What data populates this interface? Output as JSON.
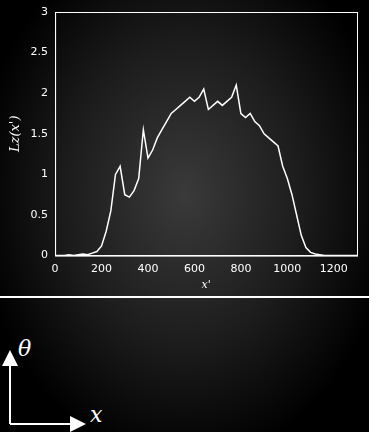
{
  "chart_data": {
    "type": "line",
    "x_label": "x'",
    "y_label": "Lz(x')",
    "x": [
      0,
      20,
      40,
      60,
      80,
      100,
      120,
      140,
      160,
      180,
      200,
      220,
      240,
      260,
      280,
      300,
      320,
      340,
      360,
      380,
      400,
      420,
      440,
      460,
      480,
      500,
      520,
      540,
      560,
      580,
      600,
      620,
      640,
      660,
      680,
      700,
      720,
      740,
      760,
      780,
      800,
      820,
      840,
      860,
      880,
      900,
      920,
      940,
      960,
      980,
      1000,
      1020,
      1040,
      1060,
      1080,
      1100,
      1120,
      1140,
      1160,
      1180,
      1200,
      1220,
      1240,
      1260,
      1280,
      1300
    ],
    "values": [
      0,
      0,
      0,
      0.01,
      0,
      0.01,
      0.02,
      0.01,
      0.03,
      0.05,
      0.12,
      0.3,
      0.55,
      1.0,
      1.1,
      0.75,
      0.72,
      0.8,
      0.95,
      1.55,
      1.2,
      1.3,
      1.45,
      1.55,
      1.65,
      1.75,
      1.8,
      1.85,
      1.9,
      1.95,
      1.9,
      1.95,
      2.05,
      1.8,
      1.85,
      1.9,
      1.85,
      1.9,
      1.95,
      2.1,
      1.75,
      1.7,
      1.75,
      1.65,
      1.6,
      1.5,
      1.45,
      1.4,
      1.35,
      1.1,
      0.95,
      0.75,
      0.5,
      0.25,
      0.1,
      0.04,
      0.02,
      0.01,
      0,
      0,
      0,
      0,
      0,
      0,
      0,
      0
    ],
    "color": "#ffffff",
    "xlim": [
      0,
      1300
    ],
    "xticks": [
      0,
      200,
      400,
      600,
      800,
      1000,
      1200
    ],
    "ylim": [
      0,
      3
    ],
    "yticks": [
      0,
      0.5,
      1,
      1.5,
      2,
      2.5,
      3
    ],
    "grid": false,
    "annotations": [
      "θ",
      "x"
    ]
  }
}
